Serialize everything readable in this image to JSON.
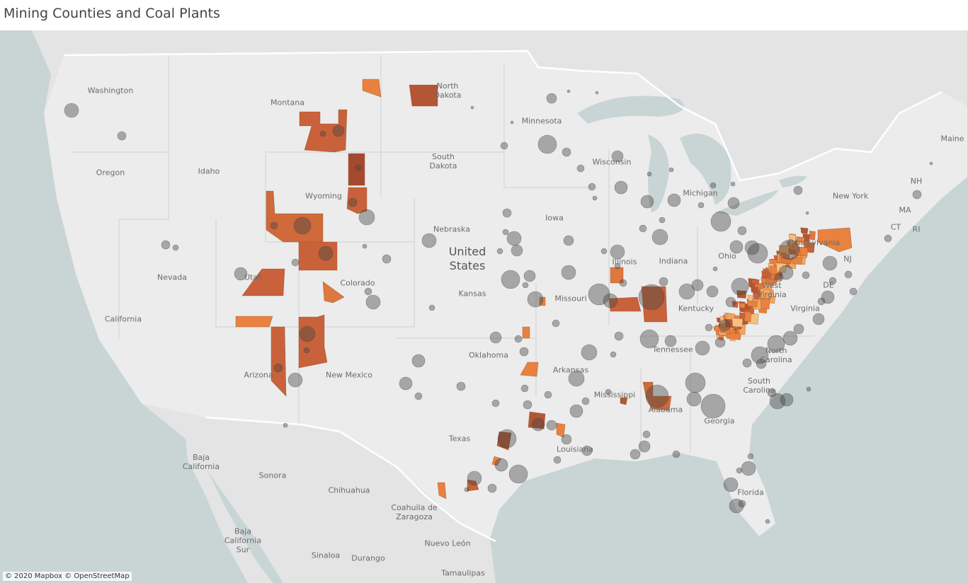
{
  "title": "Mining Counties and Coal Plants",
  "map": {
    "labels": [
      "Washington",
      "Montana",
      "North Dakota",
      "Minnesota",
      "Oregon",
      "Idaho",
      "Wyoming",
      "South Dakota",
      "Wisconsin",
      "Michigan",
      "New York",
      "Maine",
      "NH",
      "MA",
      "CT",
      "RI",
      "Nebraska",
      "Iowa",
      "United States",
      "Nevada",
      "Utah",
      "Colorado",
      "Kansas",
      "Missouri",
      "Illinois",
      "Indiana",
      "Ohio",
      "West Virginia",
      "Pennsylvania",
      "Kentucky",
      "Virginia",
      "NJ",
      "DE",
      "California",
      "Tennessee",
      "North Carolina",
      "Oklahoma",
      "Arkansas",
      "Arizona",
      "New Mexico",
      "South Carolina",
      "Mississippi",
      "Alabama",
      "Georgia",
      "Texas",
      "Louisiana",
      "Florida",
      "Baja California",
      "Sonora",
      "Chihuahua",
      "Coahuila de Zaragoza",
      "Baja California Sur",
      "Sinaloa",
      "Durango",
      "Nuevo León",
      "Tamaulipas"
    ],
    "attribution": "© 2020 Mapbox © OpenStreetMap"
  }
}
